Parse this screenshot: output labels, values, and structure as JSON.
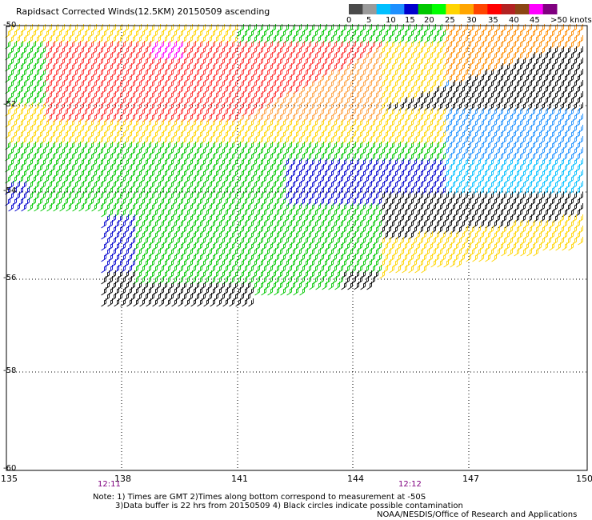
{
  "title": "Rapidsact Corrected Winds(12.5KM) 20150509 ascending",
  "colorbar": {
    "labels": [
      "0",
      "5",
      "10",
      "15",
      "20",
      "25",
      "30",
      "35",
      "40",
      "45",
      ">50 knots"
    ],
    "colors": [
      "#4a4a4a",
      "#9a9a9a",
      "#00bfff",
      "#1e90ff",
      "#0000cd",
      "#00c800",
      "#00ff00",
      "#ffd400",
      "#ffa500",
      "#ff4500",
      "#ff0000",
      "#b22222",
      "#8b4513",
      "#ff00ff",
      "#800080"
    ]
  },
  "axes": {
    "x_ticks": [
      "135",
      "138",
      "141",
      "144",
      "147",
      "150"
    ],
    "y_ticks": [
      "-50",
      "-52",
      "-54",
      "-56",
      "-58",
      "-60"
    ],
    "x_range": [
      135,
      150
    ],
    "y_range": [
      -60,
      -50
    ]
  },
  "times": [
    "12:11",
    "12:12"
  ],
  "notes": {
    "line1": "Note: 1) Times are GMT 2)Times along bottom correspond to measurement at -50S",
    "line2": "3)Data buffer is 22 hrs from 20150509 4) Black circles indicate possible contamination",
    "line3": "NOAA/NESDIS/Office of Research and Applications"
  }
}
